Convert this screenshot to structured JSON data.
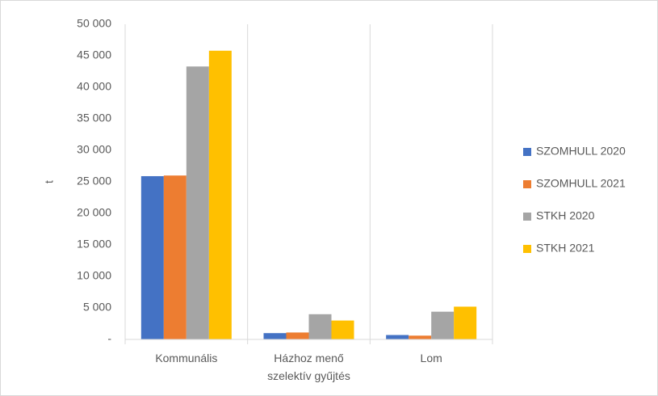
{
  "chart_data": {
    "type": "bar",
    "y_label": "t",
    "categories": [
      "Kommunális",
      "Házhoz menő szelektív gyűjtés",
      "Lom"
    ],
    "series": [
      {
        "name": "SZOMHULL 2020",
        "color": "#4472c4",
        "values": [
          25900,
          1000,
          700
        ]
      },
      {
        "name": "SZOMHULL 2021",
        "color": "#ed7d31",
        "values": [
          26000,
          1100,
          600
        ]
      },
      {
        "name": "STKH 2020",
        "color": "#a5a5a5",
        "values": [
          43300,
          4000,
          4400
        ]
      },
      {
        "name": "STKH 2021",
        "color": "#ffc000",
        "values": [
          45800,
          3000,
          5200
        ]
      }
    ],
    "ylim": [
      0,
      50000
    ],
    "yticks": [
      {
        "value": 0,
        "label": "-"
      },
      {
        "value": 5000,
        "label": "5 000"
      },
      {
        "value": 10000,
        "label": "10 000"
      },
      {
        "value": 15000,
        "label": "15 000"
      },
      {
        "value": 20000,
        "label": "20 000"
      },
      {
        "value": 25000,
        "label": "25 000"
      },
      {
        "value": 30000,
        "label": "30 000"
      },
      {
        "value": 35000,
        "label": "35 000"
      },
      {
        "value": 40000,
        "label": "40 000"
      },
      {
        "value": 45000,
        "label": "45 000"
      },
      {
        "value": 50000,
        "label": "50 000"
      }
    ],
    "legend": "right"
  }
}
